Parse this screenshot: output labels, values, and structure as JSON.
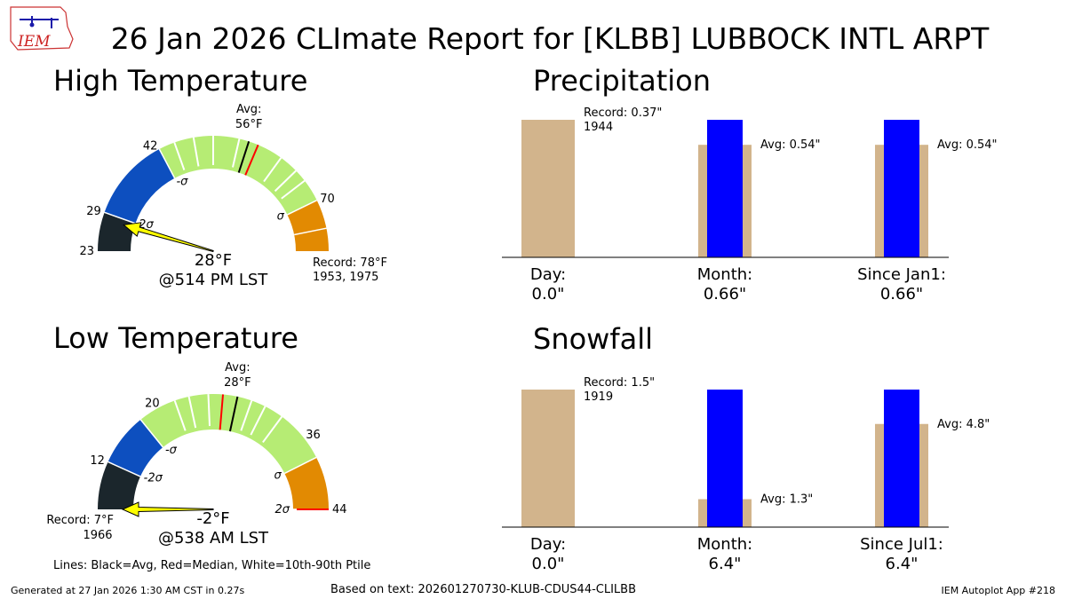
{
  "title": "26 Jan 2026 CLImate Report for [KLBB] LUBBOCK INTL ARPT",
  "logo_text": "IEM",
  "colors": {
    "below_2sigma": "#1b262c",
    "below_sigma": "#0d4fbf",
    "normal": "#b6ec74",
    "above_sigma": "#e28a02",
    "avg_line": "#000000",
    "median_line": "#ff0000",
    "pointer": "#ffff00",
    "bar_avg": "#d2b48c",
    "bar_obs": "#0000ff"
  },
  "gauges": [
    {
      "title": "High Temperature",
      "min": 23,
      "max": 78,
      "ticks": [
        "23",
        "29",
        "42",
        "70"
      ],
      "tick_values": [
        23,
        29,
        42,
        70
      ],
      "avg_label": "Avg:",
      "avg_value_label": "56°F",
      "avg": 56,
      "median": 57.5,
      "p10": 42,
      "p90": 70,
      "minus_2sigma": 29,
      "minus_sigma": 42,
      "plus_sigma": 70,
      "plus_2sigma": 74.5,
      "sigma_labels": [
        "2σ",
        "-σ",
        "σ"
      ],
      "white_lines": [
        44.5,
        47.5,
        50.5,
        54.5,
        61.5,
        64.5,
        66.5
      ],
      "observed": 28,
      "observed_label": "28°F",
      "time_label": "@514 PM LST",
      "record_label": "Record: 78°F",
      "record_years": "1953, 1975"
    },
    {
      "title": "Low Temperature",
      "min": 7,
      "max": 44,
      "ticks": [
        "12",
        "20",
        "36",
        "44"
      ],
      "tick_values": [
        12,
        20,
        36,
        44
      ],
      "avg_label": "Avg:",
      "avg_value_label": "28°F",
      "avg": 28,
      "median": 26.5,
      "p10": 20,
      "p90": 36,
      "minus_2sigma": 12,
      "minus_sigma": 17.5,
      "plus_sigma": 38.5,
      "plus_2sigma": 44,
      "sigma_labels": [
        "-2σ",
        "-σ",
        "σ",
        "2σ"
      ],
      "white_lines": [
        21.5,
        23,
        25,
        29.5,
        31,
        33
      ],
      "observed": -2,
      "observed_label": "-2°F",
      "time_label": "@538 AM LST",
      "record_label": "Record: 7°F",
      "record_years": "1966"
    }
  ],
  "bar_panels": [
    {
      "title": "Precipitation",
      "ymax": 0.66,
      "record": 0.37,
      "record_label": "Record: 0.37\"",
      "record_year": "1944",
      "groups": [
        {
          "label": "Day:",
          "value_label": "0.0\"",
          "avg": 0.37,
          "obs": 0.0,
          "avg_label": ""
        },
        {
          "label": "Month:",
          "value_label": "0.66\"",
          "avg": 0.54,
          "obs": 0.66,
          "avg_label": "Avg: 0.54\""
        },
        {
          "label": "Since Jan1:",
          "value_label": "0.66\"",
          "avg": 0.54,
          "obs": 0.66,
          "avg_label": "Avg: 0.54\""
        }
      ]
    },
    {
      "title": "Snowfall",
      "ymax": 6.4,
      "record": 1.5,
      "record_label": "Record: 1.5\"",
      "record_year": "1919",
      "groups": [
        {
          "label": "Day:",
          "value_label": "0.0\"",
          "avg": 1.5,
          "obs": 0.0,
          "avg_label": ""
        },
        {
          "label": "Month:",
          "value_label": "6.4\"",
          "avg": 1.3,
          "obs": 6.4,
          "avg_label": "Avg: 1.3\""
        },
        {
          "label": "Since Jul1:",
          "value_label": "6.4\"",
          "avg": 4.8,
          "obs": 6.4,
          "avg_label": "Avg: 4.8\""
        }
      ]
    }
  ],
  "legend_note": "Lines: Black=Avg, Red=Median, White=10th-90th Ptile",
  "footer": {
    "generated": "Generated at 27 Jan 2026 1:30 AM CST in 0.27s",
    "based_on": "Based on text: 202601270730-KLUB-CDUS44-CLILBB",
    "app": "IEM Autoplot App #218"
  }
}
